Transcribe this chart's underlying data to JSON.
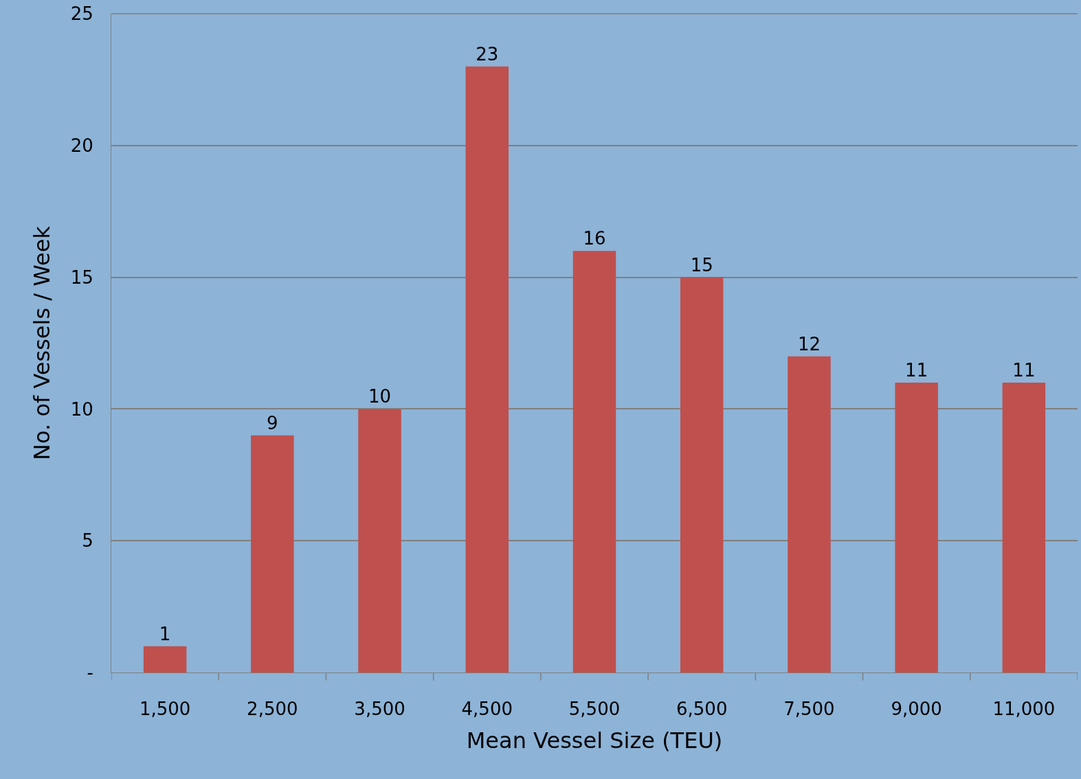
{
  "chart_data": {
    "type": "bar",
    "xlabel": "Mean Vessel Size (TEU)",
    "ylabel": "No. of Vessels / Week",
    "categories": [
      "1,500",
      "2,500",
      "3,500",
      "4,500",
      "5,500",
      "6,500",
      "7,500",
      "9,000",
      "11,000"
    ],
    "values": [
      1,
      9,
      10,
      23,
      16,
      15,
      12,
      11,
      11
    ],
    "color": "#c0504d",
    "ylim": [
      0,
      25
    ],
    "yticks": [
      {
        "value": 0,
        "label": "-"
      },
      5,
      10,
      15,
      20,
      25
    ],
    "grid": "y",
    "data_labels": true
  }
}
